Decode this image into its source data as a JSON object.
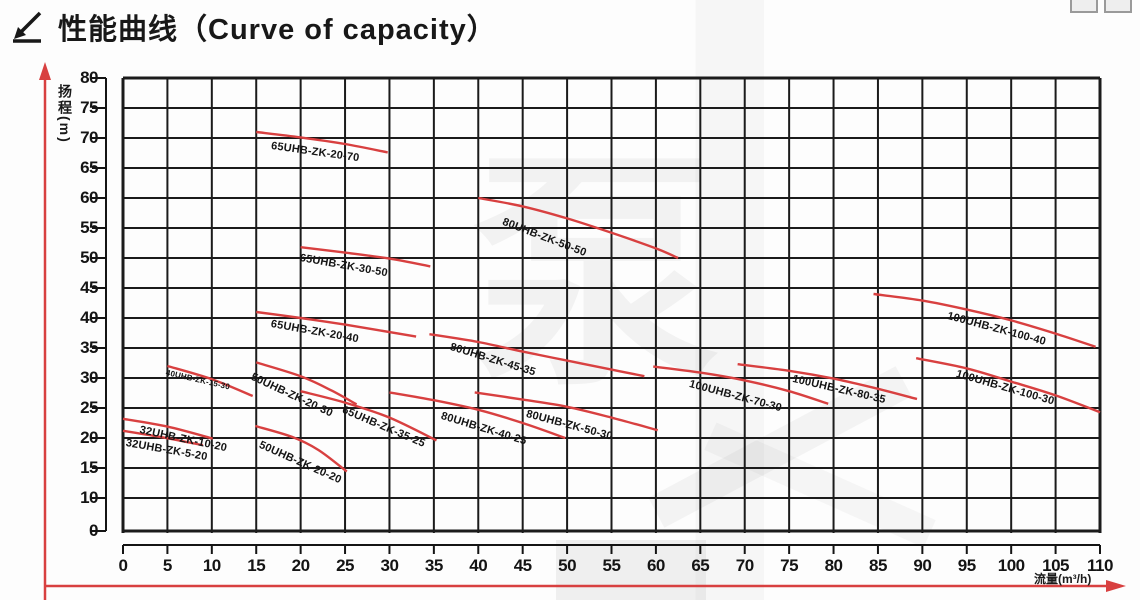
{
  "header": {
    "title": "性能曲线（Curve of capacity）"
  },
  "window_fragment": {
    "icons": [
      "window-button-fragment",
      "window-button-fragment"
    ]
  },
  "watermark": {
    "char": "泵"
  },
  "chart_data": {
    "type": "line",
    "title": "性能曲线（Curve of capacity）",
    "xlabel": "流量(m³/h)",
    "ylabel": "扬程(m)",
    "x_ticks": [
      0,
      5,
      10,
      15,
      20,
      25,
      30,
      35,
      40,
      45,
      50,
      55,
      60,
      65,
      70,
      75,
      80,
      85,
      90,
      95,
      100,
      105,
      110
    ],
    "y_ticks": [
      80,
      75,
      70,
      65,
      60,
      55,
      50,
      45,
      40,
      35,
      30,
      25,
      20,
      15,
      10,
      0
    ],
    "xlim": [
      0,
      110
    ],
    "ylim": [
      0,
      80
    ],
    "grid": true,
    "curve_color": "#d84040",
    "grid_color": "#1b1b1b",
    "series": [
      {
        "name": "65UHB-ZK-20-70",
        "points": [
          [
            15,
            71
          ],
          [
            20,
            70.1
          ],
          [
            25,
            69
          ],
          [
            29.8,
            67.6
          ]
        ],
        "label": {
          "x": 16.8,
          "y": 69.6,
          "rot": 8,
          "size": 11
        }
      },
      {
        "name": "80UHB-ZK-50-50",
        "points": [
          [
            40,
            60
          ],
          [
            45,
            58.6
          ],
          [
            50,
            56.6
          ],
          [
            55,
            54.2
          ],
          [
            60,
            51.6
          ],
          [
            62.5,
            50
          ]
        ],
        "label": {
          "x": 43,
          "y": 57,
          "rot": 21,
          "size": 11
        }
      },
      {
        "name": "65UHB-ZK-30-50",
        "points": [
          [
            20,
            51.8
          ],
          [
            25,
            50.9
          ],
          [
            30,
            49.9
          ],
          [
            34.6,
            48.6
          ]
        ],
        "label": {
          "x": 20,
          "y": 51,
          "rot": 10,
          "size": 11
        }
      },
      {
        "name": "65UHB-ZK-20-40",
        "points": [
          [
            15,
            41
          ],
          [
            20,
            40
          ],
          [
            25,
            38.9
          ],
          [
            33,
            36.9
          ]
        ],
        "label": {
          "x": 16.8,
          "y": 40,
          "rot": 10,
          "size": 11
        }
      },
      {
        "name": "80UHB-ZK-45-35",
        "points": [
          [
            34.5,
            37.3
          ],
          [
            40,
            36
          ],
          [
            45,
            34.4
          ],
          [
            50,
            32.9
          ],
          [
            55,
            31.4
          ],
          [
            58.7,
            30.3
          ]
        ],
        "label": {
          "x": 37,
          "y": 36.2,
          "rot": 17,
          "size": 11
        }
      },
      {
        "name": "100UHB-ZK-100-40",
        "points": [
          [
            84.5,
            44
          ],
          [
            90,
            42.9
          ],
          [
            95,
            41.4
          ],
          [
            100,
            39.6
          ],
          [
            105,
            37.4
          ],
          [
            109.5,
            35.2
          ]
        ],
        "label": {
          "x": 93,
          "y": 41.4,
          "rot": 15,
          "size": 11
        }
      },
      {
        "name": "40UHB-ZK-15-30",
        "points": [
          [
            5,
            32
          ],
          [
            10,
            29.8
          ],
          [
            14.6,
            27
          ]
        ],
        "label": {
          "x": 5,
          "y": 31.6,
          "rot": 13,
          "size": 8
        }
      },
      {
        "name": "50UHB-ZK-20-30",
        "points": [
          [
            15,
            32.6
          ],
          [
            20,
            30.3
          ],
          [
            23.5,
            27.9
          ],
          [
            26.3,
            25.6
          ]
        ],
        "label": {
          "x": 14.7,
          "y": 31.2,
          "rot": 25,
          "size": 11
        }
      },
      {
        "name": "65UHB-ZK-35-25",
        "points": [
          [
            20,
            27.8
          ],
          [
            25,
            25.9
          ],
          [
            30,
            23.4
          ],
          [
            35.3,
            19.6
          ]
        ],
        "label": {
          "x": 25,
          "y": 25.6,
          "rot": 23,
          "size": 11
        }
      },
      {
        "name": "80UHB-ZK-40-25",
        "points": [
          [
            30,
            27.6
          ],
          [
            35,
            26.3
          ],
          [
            40,
            24.7
          ],
          [
            45,
            22.5
          ],
          [
            49.8,
            20
          ]
        ],
        "label": {
          "x": 36,
          "y": 24.6,
          "rot": 17,
          "size": 11
        }
      },
      {
        "name": "80UHB-ZK-50-30",
        "points": [
          [
            39.6,
            27.6
          ],
          [
            45,
            26.4
          ],
          [
            50,
            25.2
          ],
          [
            55,
            23.4
          ],
          [
            60.2,
            21.3
          ]
        ],
        "label": {
          "x": 45.6,
          "y": 25,
          "rot": 15,
          "size": 11
        }
      },
      {
        "name": "100UHB-ZK-70-30",
        "points": [
          [
            59.7,
            31.9
          ],
          [
            65,
            30.9
          ],
          [
            70,
            29.6
          ],
          [
            75,
            27.8
          ],
          [
            79.4,
            25.7
          ]
        ],
        "label": {
          "x": 64,
          "y": 30,
          "rot": 15,
          "size": 11
        }
      },
      {
        "name": "100UHB-ZK-80-35",
        "points": [
          [
            69.2,
            32.3
          ],
          [
            75,
            31.2
          ],
          [
            80,
            29.9
          ],
          [
            85,
            28.2
          ],
          [
            89.4,
            26.5
          ]
        ],
        "label": {
          "x": 75.6,
          "y": 30.9,
          "rot": 13,
          "size": 11
        }
      },
      {
        "name": "100UHB-ZK-100-30",
        "points": [
          [
            89.3,
            33.3
          ],
          [
            95,
            31.6
          ],
          [
            100,
            29.4
          ],
          [
            105,
            27.1
          ],
          [
            110,
            24.3
          ]
        ],
        "label": {
          "x": 94,
          "y": 31.6,
          "rot": 16,
          "size": 11
        }
      },
      {
        "name": "32UHB-ZK-10-20",
        "points": [
          [
            0,
            23.2
          ],
          [
            5,
            21.9
          ],
          [
            10.1,
            19.9
          ]
        ],
        "label": {
          "x": 2,
          "y": 22.3,
          "rot": 12,
          "size": 11
        }
      },
      {
        "name": "32UHB-ZK-5-20",
        "points": [
          [
            0,
            21.2
          ],
          [
            4.5,
            20.1
          ],
          [
            9,
            18.8
          ]
        ],
        "label": {
          "x": 0.5,
          "y": 20.1,
          "rot": 10,
          "size": 11
        }
      },
      {
        "name": "50UHB-ZK-20-20",
        "points": [
          [
            14.9,
            22
          ],
          [
            19,
            20.2
          ],
          [
            22,
            18
          ],
          [
            25.2,
            14.4
          ]
        ],
        "label": {
          "x": 15.7,
          "y": 19.8,
          "rot": 24,
          "size": 11
        }
      }
    ]
  }
}
